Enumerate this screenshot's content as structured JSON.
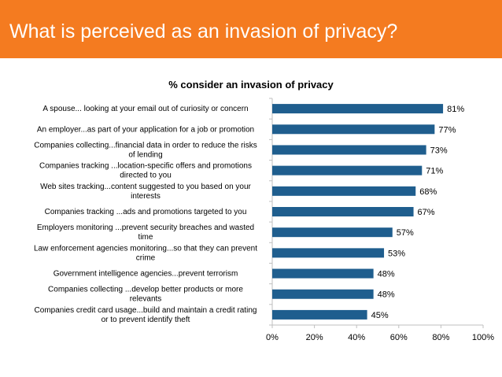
{
  "header": {
    "title": "What is perceived as an invasion of privacy?"
  },
  "colors": {
    "header": "#f47b20",
    "bar": "#1f5e8e",
    "axis": "#bfbfbf"
  },
  "chart_data": {
    "type": "bar",
    "orientation": "horizontal",
    "title": "% consider an invasion of privacy",
    "xlabel": "",
    "ylabel": "",
    "xlim": [
      0,
      100
    ],
    "x_ticks": [
      "0%",
      "20%",
      "40%",
      "60%",
      "80%",
      "100%"
    ],
    "grid": false,
    "categories": [
      [
        "A spouse... looking at your email out of curiosity or concern"
      ],
      [
        "An employer...as part of your application for a job or promotion"
      ],
      [
        "Companies collecting...financial data in order to reduce the risks",
        "of lending"
      ],
      [
        "Companies tracking ...location-specific offers and promotions",
        "directed to you"
      ],
      [
        "Web sites tracking...content suggested to you based on your",
        "interests"
      ],
      [
        "Companies tracking ...ads and promotions targeted to you"
      ],
      [
        "Employers monitoring ...prevent security breaches and wasted",
        "time"
      ],
      [
        "Law enforcement agencies monitoring...so that they can prevent",
        "crime"
      ],
      [
        "Government intelligence agencies...prevent terrorism"
      ],
      [
        "Companies collecting ...develop better products or more",
        "relevants"
      ],
      [
        "Companies credit card usage...build and maintain a credit rating",
        "or to prevent identify theft"
      ]
    ],
    "values": [
      81,
      77,
      73,
      71,
      68,
      67,
      57,
      53,
      48,
      48,
      45
    ],
    "value_labels": [
      "81%",
      "77%",
      "73%",
      "71%",
      "68%",
      "67%",
      "57%",
      "53%",
      "48%",
      "48%",
      "45%"
    ]
  }
}
